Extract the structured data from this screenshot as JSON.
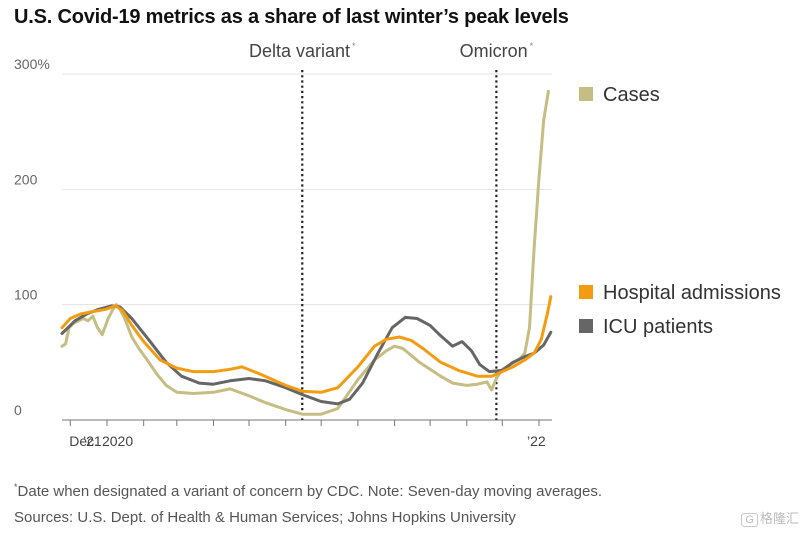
{
  "title": "U.S. Covid-19 metrics as a share of last winter’s peak levels",
  "note": "Date when designated a variant of concern by CDC. Note: Seven-day moving averages.",
  "note_marker": "*",
  "sources": "Sources: U.S. Dept. of Health & Human Services; Johns Hopkins University",
  "watermark": {
    "icon": "G",
    "text": "格隆汇"
  },
  "chart_data": {
    "type": "line",
    "title": "U.S. Covid-19 metrics as a share of last winter’s peak levels",
    "xlabel": "",
    "ylabel": "",
    "y_unit": "%",
    "ylim": [
      0,
      300
    ],
    "xlim": [
      "2020-11-24",
      "2022-01-12"
    ],
    "yticks": [
      {
        "value": 0,
        "label": "0"
      },
      {
        "value": 100,
        "label": "100"
      },
      {
        "value": 200,
        "label": "200"
      },
      {
        "value": 300,
        "label": "300%"
      }
    ],
    "xticks": [
      {
        "date": "2020-12-01",
        "label": "Dec. 2020"
      },
      {
        "date": "2021-01-01",
        "label": "’21"
      },
      {
        "date": "2022-01-01",
        "label": "’22"
      }
    ],
    "month_ticks": [
      "2020-12-01",
      "2021-01-01",
      "2021-02-01",
      "2021-03-01",
      "2021-04-01",
      "2021-05-01",
      "2021-06-01",
      "2021-07-01",
      "2021-08-01",
      "2021-09-01",
      "2021-10-01",
      "2021-11-01",
      "2021-12-01",
      "2022-01-01"
    ],
    "grid": true,
    "legend_position": "right",
    "annotations": [
      {
        "date": "2021-06-15",
        "label": "Delta variant",
        "marker": "*"
      },
      {
        "date": "2021-11-26",
        "label": "Omicron",
        "marker": "*"
      }
    ],
    "series": [
      {
        "name": "Cases",
        "color": "#c6bd83",
        "points": [
          [
            "2020-11-24",
            64
          ],
          [
            "2020-11-27",
            66
          ],
          [
            "2020-11-30",
            80
          ],
          [
            "2020-12-04",
            84
          ],
          [
            "2020-12-08",
            86
          ],
          [
            "2020-12-12",
            88
          ],
          [
            "2020-12-16",
            86
          ],
          [
            "2020-12-20",
            90
          ],
          [
            "2020-12-24",
            80
          ],
          [
            "2020-12-28",
            74
          ],
          [
            "2021-01-02",
            88
          ],
          [
            "2021-01-06",
            96
          ],
          [
            "2021-01-09",
            100
          ],
          [
            "2021-01-12",
            96
          ],
          [
            "2021-01-16",
            88
          ],
          [
            "2021-01-22",
            72
          ],
          [
            "2021-01-28",
            62
          ],
          [
            "2021-02-04",
            52
          ],
          [
            "2021-02-12",
            40
          ],
          [
            "2021-02-20",
            30
          ],
          [
            "2021-03-01",
            24
          ],
          [
            "2021-03-15",
            23
          ],
          [
            "2021-04-01",
            24
          ],
          [
            "2021-04-15",
            27
          ],
          [
            "2021-05-01",
            21
          ],
          [
            "2021-05-15",
            15
          ],
          [
            "2021-06-01",
            9
          ],
          [
            "2021-06-15",
            5
          ],
          [
            "2021-07-01",
            5
          ],
          [
            "2021-07-15",
            10
          ],
          [
            "2021-08-01",
            35
          ],
          [
            "2021-08-15",
            52
          ],
          [
            "2021-08-25",
            60
          ],
          [
            "2021-09-01",
            64
          ],
          [
            "2021-09-08",
            62
          ],
          [
            "2021-09-15",
            56
          ],
          [
            "2021-09-22",
            50
          ],
          [
            "2021-10-01",
            44
          ],
          [
            "2021-10-10",
            38
          ],
          [
            "2021-10-20",
            32
          ],
          [
            "2021-11-01",
            30
          ],
          [
            "2021-11-10",
            31
          ],
          [
            "2021-11-18",
            33
          ],
          [
            "2021-11-22",
            26
          ],
          [
            "2021-11-26",
            36
          ],
          [
            "2021-12-01",
            44
          ],
          [
            "2021-12-08",
            48
          ],
          [
            "2021-12-15",
            52
          ],
          [
            "2021-12-20",
            58
          ],
          [
            "2021-12-24",
            80
          ],
          [
            "2021-12-28",
            150
          ],
          [
            "2022-01-01",
            210
          ],
          [
            "2022-01-05",
            260
          ],
          [
            "2022-01-09",
            285
          ]
        ]
      },
      {
        "name": "Hospital admissions",
        "color": "#f39c12",
        "points": [
          [
            "2020-11-24",
            80
          ],
          [
            "2020-12-01",
            88
          ],
          [
            "2020-12-10",
            92
          ],
          [
            "2020-12-20",
            94
          ],
          [
            "2020-12-31",
            96
          ],
          [
            "2021-01-08",
            99
          ],
          [
            "2021-01-14",
            95
          ],
          [
            "2021-01-22",
            82
          ],
          [
            "2021-02-01",
            68
          ],
          [
            "2021-02-15",
            52
          ],
          [
            "2021-03-01",
            45
          ],
          [
            "2021-03-15",
            42
          ],
          [
            "2021-04-01",
            42
          ],
          [
            "2021-04-15",
            44
          ],
          [
            "2021-04-25",
            46
          ],
          [
            "2021-05-10",
            40
          ],
          [
            "2021-06-01",
            30
          ],
          [
            "2021-06-15",
            25
          ],
          [
            "2021-07-01",
            24
          ],
          [
            "2021-07-15",
            28
          ],
          [
            "2021-08-01",
            46
          ],
          [
            "2021-08-15",
            64
          ],
          [
            "2021-08-25",
            70
          ],
          [
            "2021-09-05",
            72
          ],
          [
            "2021-09-15",
            69
          ],
          [
            "2021-09-25",
            62
          ],
          [
            "2021-10-10",
            50
          ],
          [
            "2021-10-25",
            43
          ],
          [
            "2021-11-10",
            38
          ],
          [
            "2021-11-22",
            38
          ],
          [
            "2021-12-01",
            42
          ],
          [
            "2021-12-10",
            46
          ],
          [
            "2021-12-20",
            52
          ],
          [
            "2021-12-28",
            58
          ],
          [
            "2022-01-03",
            70
          ],
          [
            "2022-01-08",
            92
          ],
          [
            "2022-01-11",
            107
          ]
        ]
      },
      {
        "name": "ICU patients",
        "color": "#666666",
        "points": [
          [
            "2020-11-24",
            75
          ],
          [
            "2020-12-05",
            86
          ],
          [
            "2020-12-15",
            92
          ],
          [
            "2020-12-25",
            96
          ],
          [
            "2021-01-05",
            99
          ],
          [
            "2021-01-12",
            98
          ],
          [
            "2021-01-22",
            88
          ],
          [
            "2021-02-05",
            70
          ],
          [
            "2021-02-20",
            50
          ],
          [
            "2021-03-05",
            38
          ],
          [
            "2021-03-20",
            32
          ],
          [
            "2021-04-01",
            31
          ],
          [
            "2021-04-15",
            34
          ],
          [
            "2021-05-01",
            36
          ],
          [
            "2021-05-15",
            34
          ],
          [
            "2021-06-01",
            28
          ],
          [
            "2021-06-15",
            22
          ],
          [
            "2021-07-01",
            16
          ],
          [
            "2021-07-15",
            14
          ],
          [
            "2021-07-25",
            18
          ],
          [
            "2021-08-05",
            32
          ],
          [
            "2021-08-18",
            58
          ],
          [
            "2021-08-30",
            80
          ],
          [
            "2021-09-10",
            89
          ],
          [
            "2021-09-20",
            88
          ],
          [
            "2021-10-01",
            82
          ],
          [
            "2021-10-10",
            73
          ],
          [
            "2021-10-20",
            64
          ],
          [
            "2021-10-28",
            68
          ],
          [
            "2021-11-05",
            60
          ],
          [
            "2021-11-12",
            48
          ],
          [
            "2021-11-20",
            42
          ],
          [
            "2021-12-01",
            43
          ],
          [
            "2021-12-10",
            50
          ],
          [
            "2021-12-20",
            55
          ],
          [
            "2021-12-28",
            58
          ],
          [
            "2022-01-05",
            65
          ],
          [
            "2022-01-11",
            76
          ]
        ]
      }
    ]
  }
}
